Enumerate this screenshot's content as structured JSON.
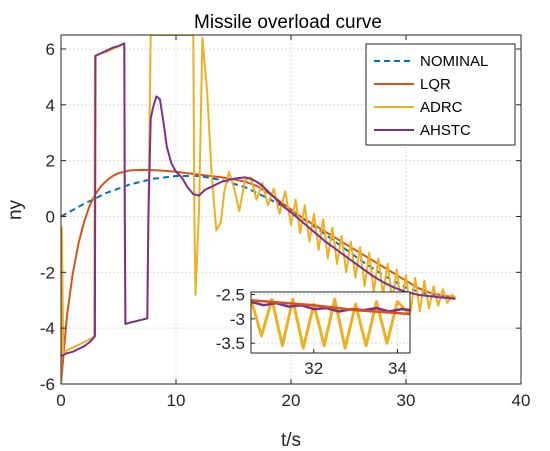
{
  "chart_data": {
    "type": "line",
    "title": "Missile overload curve",
    "xlabel": "t/s",
    "ylabel": "ny",
    "xlim": [
      0,
      40
    ],
    "ylim": [
      -6,
      6.5
    ],
    "xticks": [
      0,
      10,
      20,
      30,
      40
    ],
    "yticks": [
      -6,
      -4,
      -2,
      0,
      2,
      4,
      6
    ],
    "grid": true,
    "legend_position": "top-right",
    "series": [
      {
        "name": "NOMINAL",
        "color": "#0072BD",
        "style": "dashed",
        "x": [
          0,
          2,
          4,
          6,
          8,
          10,
          12,
          14,
          16,
          18,
          20,
          22,
          24,
          26,
          28,
          30,
          32,
          34.3
        ],
        "y": [
          0.0,
          0.45,
          0.85,
          1.15,
          1.35,
          1.45,
          1.45,
          1.3,
          1.05,
          0.65,
          0.2,
          -0.35,
          -0.95,
          -1.55,
          -2.1,
          -2.55,
          -2.8,
          -2.95
        ]
      },
      {
        "name": "LQR",
        "color": "#D95319",
        "style": "solid",
        "x": [
          0,
          0.5,
          1,
          1.5,
          2,
          2.5,
          3,
          3.5,
          4,
          4.5,
          5,
          5.5,
          6,
          7,
          8,
          9,
          10,
          11,
          12,
          13,
          14,
          15,
          16,
          17,
          18,
          19,
          20,
          21,
          22,
          23,
          24,
          25,
          26,
          27,
          28,
          29,
          30,
          31,
          32,
          33,
          34.3
        ],
        "y": [
          -6.0,
          -3.6,
          -2.1,
          -1.0,
          -0.2,
          0.4,
          0.8,
          1.1,
          1.3,
          1.45,
          1.55,
          1.6,
          1.65,
          1.67,
          1.66,
          1.64,
          1.6,
          1.55,
          1.5,
          1.45,
          1.4,
          1.33,
          1.25,
          1.1,
          0.85,
          0.55,
          0.25,
          -0.05,
          -0.3,
          -0.55,
          -0.8,
          -1.05,
          -1.3,
          -1.55,
          -1.8,
          -2.05,
          -2.3,
          -2.55,
          -2.72,
          -2.82,
          -2.9
        ]
      },
      {
        "name": "ADRC",
        "color": "#EDB120",
        "style": "solid",
        "x": [
          0,
          0.08,
          0.2,
          0.5,
          1,
          1.5,
          2,
          2.5,
          2.9,
          2.95,
          3.5,
          4,
          5,
          5.5,
          5.55,
          5.6,
          6,
          7,
          7.5,
          7.6,
          7.8,
          8,
          8.5,
          9,
          9.5,
          10,
          10.5,
          11,
          11.5,
          11.6,
          11.7,
          12.0,
          12.3,
          12.7,
          13.1,
          13.5,
          13.9,
          14.2,
          14.6,
          15.0,
          15.5,
          16.0,
          16.5,
          17.0,
          17.5,
          18.0,
          18.5,
          19.0,
          19.5,
          20.0,
          20.4,
          20.8,
          21.2,
          21.6,
          22.0,
          22.4,
          22.8,
          23.2,
          23.6,
          24.0,
          24.4,
          24.8,
          25.2,
          25.6,
          26.0,
          26.4,
          26.8,
          27.2,
          27.6,
          28.0,
          28.4,
          28.8,
          29.2,
          29.6,
          30.0,
          30.4,
          30.8,
          31.2,
          31.6,
          32.0,
          32.4,
          32.8,
          33.2,
          33.6,
          34.0,
          34.3
        ],
        "y": [
          -6.0,
          -0.4,
          -4.9,
          -4.8,
          -4.7,
          -4.6,
          -4.5,
          -4.4,
          -4.3,
          5.75,
          5.85,
          5.9,
          6.1,
          6.2,
          0.0,
          -3.85,
          -3.8,
          -3.7,
          -3.65,
          0.0,
          6.5,
          6.5,
          6.5,
          6.5,
          6.5,
          6.5,
          6.5,
          6.5,
          6.5,
          0.0,
          -2.8,
          0.2,
          6.4,
          4.5,
          1.5,
          -0.5,
          -0.2,
          0.9,
          1.6,
          1.1,
          0.2,
          1.3,
          1.4,
          0.6,
          1.2,
          0.4,
          1.0,
          0.1,
          0.9,
          -0.3,
          0.6,
          -0.6,
          0.4,
          -0.9,
          0.1,
          -1.2,
          -0.1,
          -1.5,
          -0.4,
          -1.7,
          -0.7,
          -2.0,
          -0.9,
          -2.2,
          -1.1,
          -2.5,
          -1.3,
          -2.7,
          -1.5,
          -2.8,
          -1.7,
          -3.0,
          -1.9,
          -3.2,
          -2.1,
          -3.4,
          -2.2,
          -3.4,
          -2.3,
          -3.3,
          -2.5,
          -3.2,
          -2.6,
          -3.1,
          -2.8,
          -2.9
        ]
      },
      {
        "name": "AHSTC",
        "color": "#7E2F8E",
        "style": "solid",
        "x": [
          0,
          0.5,
          1,
          1.5,
          2,
          2.5,
          2.95,
          3.0,
          3.5,
          4,
          4.5,
          5,
          5.5,
          5.55,
          5.6,
          6,
          6.5,
          7,
          7.5,
          7.6,
          7.8,
          8.0,
          8.3,
          8.6,
          8.9,
          9.2,
          9.6,
          10.0,
          10.5,
          11.0,
          11.5,
          12.0,
          12.5,
          13.0,
          13.5,
          14.0,
          14.5,
          15.0,
          15.5,
          16.0,
          16.5,
          17.0,
          17.5,
          18.0,
          18.5,
          19.0,
          19.5,
          20.0,
          21.0,
          22.0,
          23.0,
          24.0,
          25.0,
          26.0,
          27.0,
          28.0,
          29.0,
          30.0,
          31.0,
          32.0,
          33.0,
          34.3
        ],
        "y": [
          -5.0,
          -4.9,
          -4.85,
          -4.75,
          -4.65,
          -4.5,
          -4.3,
          5.75,
          5.85,
          5.95,
          6.05,
          6.1,
          6.2,
          0.0,
          -3.85,
          -3.8,
          -3.75,
          -3.7,
          -3.65,
          0.0,
          3.5,
          3.9,
          4.3,
          4.2,
          3.4,
          2.5,
          1.9,
          1.6,
          1.4,
          1.05,
          0.8,
          0.75,
          0.95,
          1.05,
          1.15,
          1.25,
          1.3,
          1.35,
          1.38,
          1.4,
          1.35,
          1.25,
          1.1,
          0.9,
          0.7,
          0.5,
          0.3,
          0.15,
          -0.2,
          -0.55,
          -0.9,
          -1.2,
          -1.5,
          -1.8,
          -2.1,
          -2.35,
          -2.55,
          -2.7,
          -2.8,
          -2.85,
          -2.9,
          -2.95
        ]
      }
    ],
    "inset": {
      "xlim": [
        30.5,
        34.3
      ],
      "ylim": [
        -3.7,
        -2.45
      ],
      "xticks": [
        32,
        34
      ],
      "yticks": [
        -2.5,
        -3,
        -3.5
      ],
      "grid": true,
      "series": [
        {
          "name": "ADRC",
          "color": "#EDB120",
          "x": [
            30.5,
            30.75,
            31.0,
            31.25,
            31.5,
            31.75,
            32.0,
            32.25,
            32.5,
            32.75,
            33.0,
            33.25,
            33.5,
            33.75,
            34.0,
            34.3
          ],
          "y": [
            -2.6,
            -3.35,
            -2.6,
            -3.55,
            -2.6,
            -3.6,
            -2.7,
            -3.55,
            -2.6,
            -3.6,
            -2.7,
            -3.55,
            -2.65,
            -3.5,
            -2.65,
            -2.9
          ]
        },
        {
          "name": "AHSTC",
          "color": "#7E2F8E",
          "x": [
            30.5,
            30.8,
            31.1,
            31.4,
            31.7,
            32.0,
            32.3,
            32.6,
            32.9,
            33.2,
            33.5,
            33.8,
            34.1,
            34.3
          ],
          "y": [
            -2.65,
            -2.72,
            -2.68,
            -2.75,
            -2.72,
            -2.8,
            -2.78,
            -2.85,
            -2.8,
            -2.82,
            -2.78,
            -2.85,
            -2.8,
            -2.82
          ]
        },
        {
          "name": "LQR",
          "color": "#D95319",
          "x": [
            30.5,
            32.0,
            33.0,
            34.3
          ],
          "y": [
            -2.62,
            -2.72,
            -2.82,
            -2.9
          ]
        }
      ]
    }
  }
}
